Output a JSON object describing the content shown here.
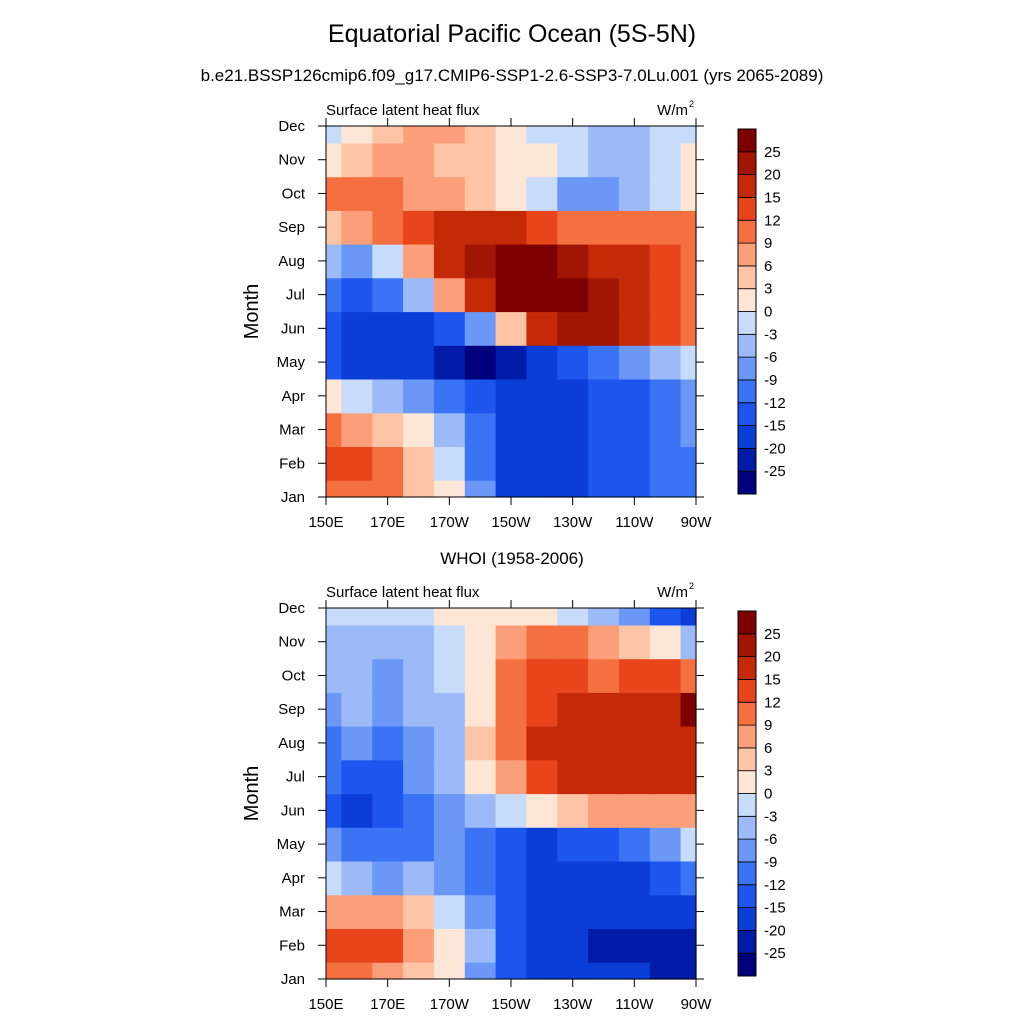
{
  "figure": {
    "title": "Equatorial Pacific Ocean (5S-5N)",
    "subtitle": "b.e21.BSSP126cmip6.f09_g17.CMIP6-SSP1-2.6-SSP3-7.0Lu.001 (yrs 2065-2089)"
  },
  "colorbar": {
    "levels": [
      "-25",
      "-20",
      "-15",
      "-12",
      "-9",
      "-6",
      "-3",
      "0",
      "3",
      "6",
      "9",
      "12",
      "15",
      "20",
      "25"
    ],
    "colors": [
      "#00007f",
      "#001ba8",
      "#0a3ed6",
      "#1d56ee",
      "#3a74f4",
      "#6b97f6",
      "#9dbaf8",
      "#c7dbfb",
      "#fde6d6",
      "#fdc4a6",
      "#fb9f7a",
      "#f57040",
      "#e8451c",
      "#c52a08",
      "#a01504",
      "#7e0000"
    ]
  },
  "chart_data": [
    {
      "type": "heatmap",
      "panel_title": "",
      "left_label": "Surface latent heat flux",
      "right_label": "W/m",
      "units_superscript": "2",
      "ylabel": "Month",
      "xlabel": "",
      "x_ticks": [
        "150E",
        "170E",
        "170W",
        "150W",
        "130W",
        "110W",
        "90W"
      ],
      "y_ticks": [
        "Jan",
        "Feb",
        "Mar",
        "Apr",
        "May",
        "Jun",
        "Jul",
        "Aug",
        "Sep",
        "Oct",
        "Nov",
        "Dec"
      ],
      "x_lon_east": [
        150,
        160,
        170,
        180,
        190,
        200,
        210,
        220,
        230,
        240,
        250,
        260,
        270
      ],
      "values": [
        [
          12,
          12,
          10,
          6,
          2,
          -8,
          -15,
          -18,
          -15,
          -12,
          -12,
          -9,
          -9
        ],
        [
          15,
          14,
          10,
          6,
          0,
          -9,
          -18,
          -18,
          -15,
          -12,
          -12,
          -9,
          -9
        ],
        [
          10,
          8,
          5,
          2,
          -3,
          -9,
          -15,
          -15,
          -15,
          -12,
          -12,
          -9,
          -6
        ],
        [
          3,
          0,
          -3,
          -6,
          -9,
          -12,
          -15,
          -15,
          -15,
          -12,
          -12,
          -9,
          -6
        ],
        [
          -12,
          -15,
          -15,
          -18,
          -22,
          -25,
          -20,
          -15,
          -12,
          -9,
          -6,
          -3,
          0
        ],
        [
          -12,
          -15,
          -15,
          -15,
          -12,
          -6,
          6,
          18,
          22,
          22,
          18,
          15,
          12
        ],
        [
          -9,
          -12,
          -9,
          -3,
          9,
          18,
          26,
          26,
          26,
          24,
          20,
          15,
          12
        ],
        [
          -3,
          -6,
          0,
          9,
          18,
          24,
          26,
          26,
          24,
          20,
          18,
          15,
          12
        ],
        [
          6,
          9,
          12,
          15,
          18,
          18,
          18,
          15,
          12,
          12,
          12,
          12,
          12
        ],
        [
          12,
          12,
          12,
          9,
          9,
          6,
          3,
          0,
          -6,
          -6,
          -3,
          0,
          3
        ],
        [
          3,
          6,
          9,
          9,
          6,
          6,
          3,
          3,
          0,
          -3,
          -3,
          0,
          3
        ],
        [
          0,
          3,
          6,
          9,
          9,
          6,
          3,
          0,
          0,
          -3,
          -3,
          0,
          0
        ]
      ]
    },
    {
      "type": "heatmap",
      "panel_title": "WHOI (1958-2006)",
      "left_label": "Surface latent heat flux",
      "right_label": "W/m",
      "units_superscript": "2",
      "ylabel": "Month",
      "xlabel": "",
      "x_ticks": [
        "150E",
        "170E",
        "170W",
        "150W",
        "130W",
        "110W",
        "90W"
      ],
      "y_ticks": [
        "Jan",
        "Feb",
        "Mar",
        "Apr",
        "May",
        "Jun",
        "Jul",
        "Aug",
        "Sep",
        "Oct",
        "Nov",
        "Dec"
      ],
      "x_lon_east": [
        150,
        160,
        170,
        180,
        190,
        200,
        210,
        220,
        230,
        240,
        250,
        260,
        270
      ],
      "values": [
        [
          12,
          12,
          9,
          6,
          3,
          -6,
          -12,
          -15,
          -15,
          -18,
          -18,
          -20,
          -22
        ],
        [
          15,
          15,
          15,
          9,
          3,
          -3,
          -12,
          -15,
          -15,
          -20,
          -20,
          -20,
          -20
        ],
        [
          9,
          9,
          9,
          6,
          0,
          -6,
          -12,
          -15,
          -15,
          -15,
          -15,
          -15,
          -15
        ],
        [
          0,
          -3,
          -6,
          -3,
          -6,
          -9,
          -12,
          -15,
          -15,
          -15,
          -15,
          -12,
          -9
        ],
        [
          -6,
          -9,
          -9,
          -9,
          -6,
          -9,
          -12,
          -15,
          -12,
          -12,
          -9,
          -6,
          0
        ],
        [
          -12,
          -15,
          -12,
          -9,
          -6,
          -3,
          0,
          3,
          6,
          9,
          9,
          9,
          9
        ],
        [
          -9,
          -12,
          -12,
          -6,
          -3,
          3,
          9,
          15,
          18,
          18,
          20,
          18,
          18
        ],
        [
          -9,
          -6,
          -9,
          -6,
          -3,
          6,
          12,
          18,
          20,
          18,
          20,
          20,
          18
        ],
        [
          -6,
          -3,
          -6,
          -3,
          -3,
          3,
          12,
          15,
          20,
          18,
          18,
          20,
          26
        ],
        [
          -3,
          -3,
          -6,
          -3,
          0,
          3,
          12,
          15,
          15,
          12,
          15,
          15,
          12
        ],
        [
          -3,
          -3,
          -3,
          -3,
          0,
          3,
          9,
          12,
          12,
          9,
          6,
          3,
          -3
        ],
        [
          0,
          0,
          0,
          0,
          3,
          3,
          3,
          3,
          0,
          -3,
          -6,
          -12,
          -18
        ]
      ]
    }
  ]
}
